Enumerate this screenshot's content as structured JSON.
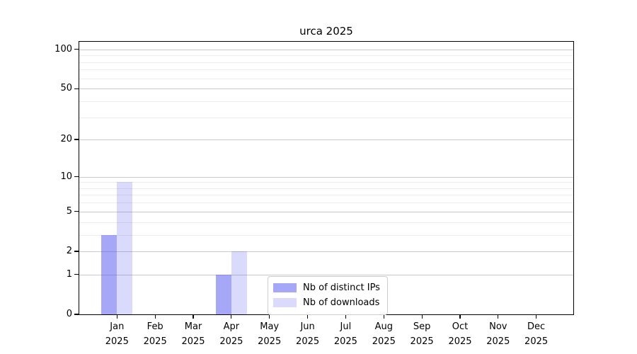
{
  "figure": {
    "title": "urca 2025"
  },
  "chart_data": {
    "type": "bar",
    "title": "urca 2025",
    "categories": [
      "Jan",
      "Feb",
      "Mar",
      "Apr",
      "May",
      "Jun",
      "Jul",
      "Aug",
      "Sep",
      "Oct",
      "Nov",
      "Dec"
    ],
    "category_year": "2025",
    "series": [
      {
        "name": "Nb of distinct IPs",
        "color": "rgba(80,80,240,0.50)",
        "solid_color": "#a8a8f7",
        "values": [
          3,
          0,
          0,
          1,
          0,
          0,
          0,
          0,
          0,
          0,
          0,
          0
        ]
      },
      {
        "name": "Nb of downloads",
        "color": "rgba(80,80,240,0.21)",
        "solid_color": "#dbdbfb",
        "values": [
          9,
          0,
          0,
          2,
          0,
          0,
          0,
          0,
          0,
          0,
          0,
          0
        ]
      }
    ],
    "xlabel": "",
    "ylabel": "",
    "yscale": "log1p",
    "yticks": [
      0,
      1,
      2,
      5,
      10,
      20,
      50,
      100
    ],
    "minor_yticks": [
      3,
      4,
      6,
      7,
      8,
      9,
      30,
      40,
      60,
      70,
      80,
      90
    ],
    "ylim": [
      0,
      114
    ],
    "grid": true,
    "legend": {
      "position": "inside-bottom-center",
      "entries": [
        "Nb of distinct IPs",
        "Nb of downloads"
      ]
    }
  },
  "style": {
    "grid_major_color": "#c9c9c9",
    "grid_minor_color": "#ececec",
    "spine_color": "#000000",
    "background": "#ffffff"
  }
}
